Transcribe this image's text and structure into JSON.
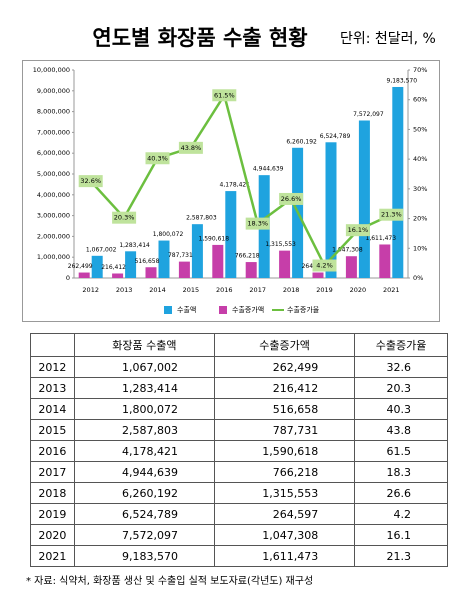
{
  "chart_data": {
    "type": "bar_line",
    "title": "연도별 화장품 수출 현황",
    "subtitle": "단위: 천달러, %",
    "categories": [
      "2012",
      "2013",
      "2014",
      "2015",
      "2016",
      "2017",
      "2018",
      "2019",
      "2020",
      "2021"
    ],
    "series": [
      {
        "name": "수출액",
        "color": "#1fa3df",
        "values": [
          1067002,
          1283414,
          1800072,
          2587803,
          4178421,
          4944639,
          6260192,
          6524789,
          7572097,
          9183570
        ],
        "value_labels": [
          "1,067,002",
          "1,283,414",
          "1,800,072",
          "2,587,803",
          "4,178,421",
          "4,944,639",
          "6,260,192",
          "6,524,789",
          "7,572,097",
          "9,183,570"
        ]
      },
      {
        "name": "수출증가액",
        "color": "#c63ea9",
        "values": [
          262499,
          216412,
          516658,
          787731,
          1590618,
          766218,
          1315553,
          264597,
          1047308,
          1611473
        ],
        "value_labels": [
          "262,499",
          "216,412",
          "516,658",
          "787,731",
          "1,590,618",
          "766,218",
          "1,315,553",
          "264,597",
          "1,047,308",
          "1,611,473"
        ]
      },
      {
        "name": "수출증가율",
        "color": "#6cbf3f",
        "axis": "y2",
        "values": [
          32.6,
          20.3,
          40.3,
          43.8,
          61.5,
          18.3,
          26.6,
          4.2,
          16.1,
          21.3
        ],
        "value_labels": [
          "32.6%",
          "20.3%",
          "40.3%",
          "43.8%",
          "61.5%",
          "18.3%",
          "26.6%",
          "4.2%",
          "16.1%",
          "21.3%"
        ]
      }
    ],
    "ylim": [
      0,
      10000000
    ],
    "yticks": [
      0,
      {
        "value": 1000000,
        "label": "1,000,000"
      },
      {
        "value": 2000000,
        "label": "2,000,000"
      },
      {
        "value": 3000000,
        "label": "3,000,000"
      },
      {
        "value": 4000000,
        "label": "4,000,000"
      },
      {
        "value": 5000000,
        "label": "5,000,000"
      },
      {
        "value": 6000000,
        "label": "6,000,000"
      },
      {
        "value": 7000000,
        "label": "7,000,000"
      },
      {
        "value": 8000000,
        "label": "8,000,000"
      },
      {
        "value": 9000000,
        "label": "9,000,000"
      },
      {
        "value": 10000000,
        "label": "10,000,000"
      }
    ],
    "y2lim": [
      0,
      70
    ],
    "y2ticks": [
      {
        "value": 0,
        "label": "0%"
      },
      {
        "value": 10,
        "label": "10%"
      },
      {
        "value": 20,
        "label": "20%"
      },
      {
        "value": 30,
        "label": "30%"
      },
      {
        "value": 40,
        "label": "40%"
      },
      {
        "value": 50,
        "label": "50%"
      },
      {
        "value": 60,
        "label": "60%"
      },
      {
        "value": 70,
        "label": "70%"
      }
    ],
    "grid": false,
    "legend": "bottom"
  },
  "table": {
    "header": [
      "",
      "화장품 수출액",
      "수출증가액",
      "수출증가율"
    ],
    "rows": [
      [
        "2012",
        "1,067,002",
        "262,499",
        "32.6"
      ],
      [
        "2013",
        "1,283,414",
        "216,412",
        "20.3"
      ],
      [
        "2014",
        "1,800,072",
        "516,658",
        "40.3"
      ],
      [
        "2015",
        "2,587,803",
        "787,731",
        "43.8"
      ],
      [
        "2016",
        "4,178,421",
        "1,590,618",
        "61.5"
      ],
      [
        "2017",
        "4,944,639",
        "766,218",
        "18.3"
      ],
      [
        "2018",
        "6,260,192",
        "1,315,553",
        "26.6"
      ],
      [
        "2019",
        "6,524,789",
        "264,597",
        "4.2"
      ],
      [
        "2020",
        "7,572,097",
        "1,047,308",
        "16.1"
      ],
      [
        "2021",
        "9,183,570",
        "1,611,473",
        "21.3"
      ]
    ]
  },
  "footnote": "* 자료: 식약처, 화장품 생산 및 수출입 실적 보도자료(각년도) 재구성"
}
